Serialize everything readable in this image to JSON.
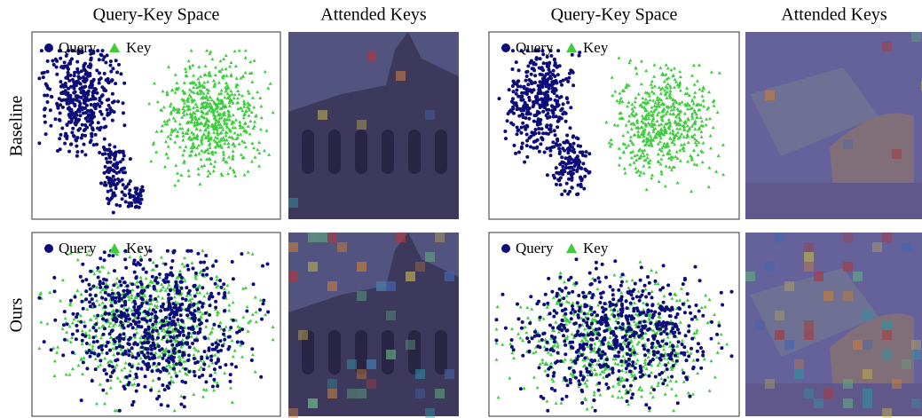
{
  "column_headers": [
    "Query-Key Space",
    "Attended Keys",
    "Query-Key Space",
    "Attended Keys"
  ],
  "row_labels": [
    "Baseline",
    "Ours"
  ],
  "scatter_panels": [
    {
      "legend": [
        "Query",
        "Key"
      ]
    },
    {
      "legend": [
        "Query",
        "Key"
      ]
    },
    {
      "legend": [
        "Query",
        "Key"
      ]
    },
    {
      "legend": [
        "Query",
        "Key"
      ]
    }
  ]
}
